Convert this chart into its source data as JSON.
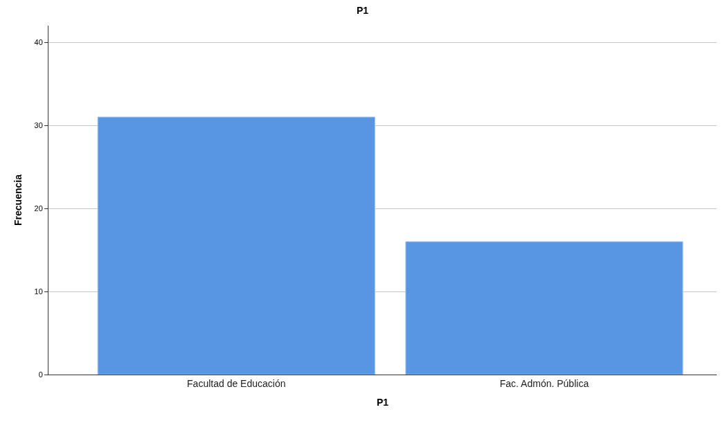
{
  "chart_data": {
    "type": "bar",
    "title": "P1",
    "xlabel": "P1",
    "ylabel": "Frecuencia",
    "categories": [
      "Facultad de Educación",
      "Fac. Admón. Pública"
    ],
    "values": [
      31,
      16
    ],
    "color": "#5896e4",
    "ylim": [
      0,
      42
    ],
    "yticks": [
      0,
      10,
      20,
      30,
      40
    ],
    "grid": "y",
    "legend": false
  }
}
